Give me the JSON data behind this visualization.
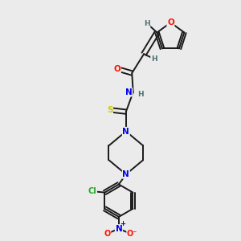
{
  "bg_color": "#ebebeb",
  "bond_color": "#1a1a1a",
  "atom_colors": {
    "O": "#ff1100",
    "N": "#0000ee",
    "S": "#cccc00",
    "Cl": "#22aa22",
    "H": "#4a7070",
    "C": "#1a1a1a"
  },
  "lw": 1.4,
  "fs_main": 7.5,
  "fs_small": 6.5
}
